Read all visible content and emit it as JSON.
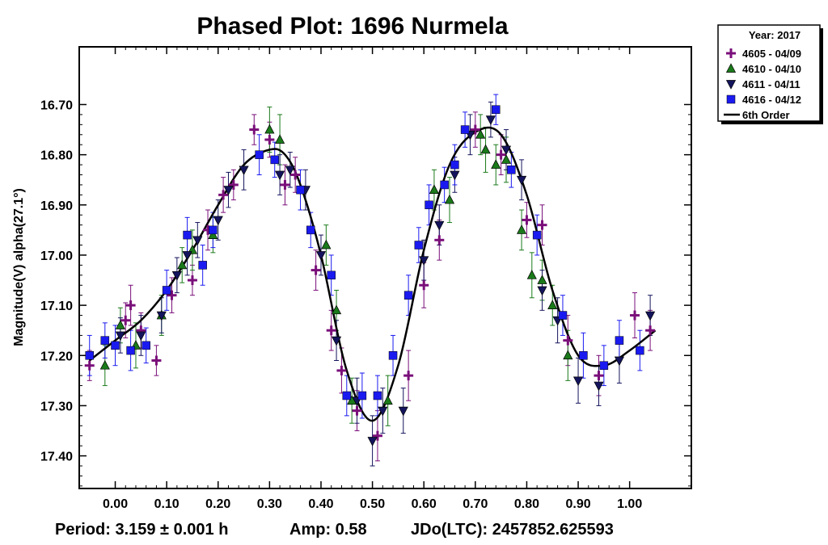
{
  "chart_data": {
    "type": "scatter",
    "title": "Phased Plot: 1696 Nurmela",
    "xlabel": "",
    "ylabel": "Magnitude(V) alpha(27.1°)",
    "xlim": [
      -0.07,
      1.12
    ],
    "ylim": [
      17.465,
      16.585
    ],
    "y_inverted": true,
    "x_ticks": [
      0.0,
      0.1,
      0.2,
      0.3,
      0.4,
      0.5,
      0.6,
      0.7,
      0.8,
      0.9,
      1.0
    ],
    "x_tick_labels": [
      "0.00",
      "0.10",
      "0.20",
      "0.30",
      "0.40",
      "0.50",
      "0.60",
      "0.70",
      "0.80",
      "0.90",
      "1.00"
    ],
    "y_ticks": [
      16.7,
      16.8,
      16.9,
      17.0,
      17.1,
      17.2,
      17.3,
      17.4
    ],
    "y_tick_labels": [
      "16.70",
      "16.80",
      "16.90",
      "17.00",
      "17.10",
      "17.20",
      "17.30",
      "17.40"
    ],
    "grid": false,
    "legend_placement": "outside top-right",
    "legend_title": "Year: 2017",
    "series": [
      {
        "name": "4605 - 04/09",
        "marker": "plus",
        "color": "#7a0f7a",
        "x": [
          -0.05,
          0.02,
          0.03,
          0.05,
          0.08,
          0.11,
          0.15,
          0.18,
          0.21,
          0.23,
          0.27,
          0.3,
          0.33,
          0.35,
          0.39,
          0.42,
          0.44,
          0.47,
          0.51,
          0.57,
          0.6,
          0.63,
          0.7,
          0.75,
          0.8,
          0.83,
          0.88,
          0.94,
          1.01,
          1.04
        ],
        "y": [
          17.22,
          17.13,
          17.1,
          17.15,
          17.21,
          17.08,
          17.05,
          16.95,
          16.88,
          16.86,
          16.75,
          16.77,
          16.86,
          16.84,
          17.03,
          17.15,
          17.23,
          17.31,
          17.36,
          17.24,
          17.06,
          16.97,
          16.75,
          16.8,
          16.93,
          16.94,
          17.17,
          17.24,
          17.12,
          17.15
        ],
        "err": [
          0.03,
          0.035,
          0.04,
          0.035,
          0.03,
          0.035,
          0.03,
          0.04,
          0.035,
          0.03,
          0.03,
          0.035,
          0.04,
          0.035,
          0.04,
          0.04,
          0.045,
          0.04,
          0.05,
          0.05,
          0.045,
          0.04,
          0.035,
          0.04,
          0.035,
          0.04,
          0.05,
          0.04,
          0.045,
          0.04
        ]
      },
      {
        "name": "4610 - 04/10",
        "marker": "triangle-up",
        "color": "#1a7a1a",
        "x": [
          -0.02,
          0.01,
          0.04,
          0.09,
          0.13,
          0.15,
          0.19,
          0.3,
          0.32,
          0.41,
          0.43,
          0.46,
          0.53,
          0.62,
          0.65,
          0.71,
          0.72,
          0.74,
          0.76,
          0.79,
          0.81,
          0.83,
          0.85,
          0.88
        ],
        "y": [
          17.22,
          17.14,
          17.18,
          17.12,
          17.02,
          16.99,
          16.96,
          16.75,
          16.77,
          16.98,
          17.11,
          17.29,
          17.29,
          16.87,
          16.89,
          16.76,
          16.79,
          16.82,
          16.81,
          16.95,
          17.04,
          17.05,
          17.1,
          17.2
        ],
        "err": [
          0.04,
          0.035,
          0.045,
          0.04,
          0.035,
          0.04,
          0.035,
          0.045,
          0.05,
          0.04,
          0.04,
          0.045,
          0.05,
          0.04,
          0.045,
          0.04,
          0.045,
          0.04,
          0.045,
          0.04,
          0.045,
          0.04,
          0.04,
          0.05
        ]
      },
      {
        "name": "4611 - 04/11",
        "marker": "triangle-down",
        "color": "#14145e",
        "x": [
          0.01,
          0.05,
          0.09,
          0.12,
          0.14,
          0.16,
          0.2,
          0.22,
          0.25,
          0.32,
          0.34,
          0.37,
          0.4,
          0.43,
          0.47,
          0.5,
          0.52,
          0.56,
          0.6,
          0.63,
          0.66,
          0.69,
          0.73,
          0.76,
          0.79,
          0.83,
          0.86,
          0.9,
          0.94,
          0.98,
          1.04
        ],
        "y": [
          17.16,
          17.16,
          17.12,
          17.04,
          17.0,
          16.97,
          16.93,
          16.87,
          16.83,
          16.84,
          16.83,
          16.87,
          17.0,
          17.17,
          17.29,
          17.37,
          17.31,
          17.31,
          17.01,
          16.94,
          16.84,
          16.76,
          16.73,
          16.79,
          16.85,
          17.07,
          17.13,
          17.25,
          17.26,
          17.21,
          17.12
        ],
        "err": [
          0.035,
          0.04,
          0.035,
          0.035,
          0.04,
          0.035,
          0.04,
          0.035,
          0.04,
          0.04,
          0.035,
          0.04,
          0.04,
          0.04,
          0.045,
          0.05,
          0.045,
          0.045,
          0.04,
          0.04,
          0.035,
          0.04,
          0.035,
          0.04,
          0.04,
          0.04,
          0.045,
          0.045,
          0.04,
          0.045,
          0.04
        ]
      },
      {
        "name": "4616 - 04/12",
        "marker": "square",
        "color": "#1a1af0",
        "x": [
          -0.05,
          -0.02,
          0.0,
          0.03,
          0.06,
          0.1,
          0.14,
          0.17,
          0.19,
          0.28,
          0.31,
          0.36,
          0.38,
          0.42,
          0.45,
          0.48,
          0.51,
          0.54,
          0.57,
          0.59,
          0.61,
          0.64,
          0.66,
          0.68,
          0.74,
          0.77,
          0.82,
          0.87,
          0.91,
          0.95,
          0.98,
          1.02
        ],
        "y": [
          17.2,
          17.17,
          17.18,
          17.19,
          17.18,
          17.07,
          16.96,
          17.02,
          16.95,
          16.8,
          16.81,
          16.87,
          16.95,
          17.04,
          17.28,
          17.28,
          17.28,
          17.2,
          17.08,
          16.98,
          16.9,
          16.86,
          16.82,
          16.75,
          16.71,
          16.83,
          16.96,
          17.12,
          17.2,
          17.22,
          17.17,
          17.19
        ],
        "err": [
          0.04,
          0.035,
          0.04,
          0.04,
          0.035,
          0.04,
          0.035,
          0.04,
          0.035,
          0.04,
          0.035,
          0.04,
          0.035,
          0.04,
          0.04,
          0.045,
          0.04,
          0.04,
          0.04,
          0.035,
          0.04,
          0.035,
          0.04,
          0.035,
          0.03,
          0.035,
          0.04,
          0.04,
          0.045,
          0.04,
          0.04,
          0.04
        ]
      }
    ],
    "fit": {
      "name": "6th Order",
      "color": "#000000",
      "x": [
        -0.05,
        0.0,
        0.05,
        0.1,
        0.15,
        0.2,
        0.25,
        0.3,
        0.33,
        0.36,
        0.4,
        0.45,
        0.5,
        0.55,
        0.6,
        0.65,
        0.7,
        0.75,
        0.8,
        0.85,
        0.9,
        0.95,
        1.0,
        1.05
      ],
      "y": [
        17.21,
        17.17,
        17.13,
        17.07,
        16.99,
        16.9,
        16.82,
        16.79,
        16.8,
        16.86,
        17.0,
        17.23,
        17.33,
        17.22,
        16.99,
        16.82,
        16.755,
        16.76,
        16.88,
        17.07,
        17.2,
        17.22,
        17.19,
        17.15
      ]
    }
  },
  "footer": {
    "period": "Period: 3.159 ± 0.001 h",
    "amp": "Amp: 0.58",
    "jdo": "JDo(LTC): 2457852.625593"
  }
}
